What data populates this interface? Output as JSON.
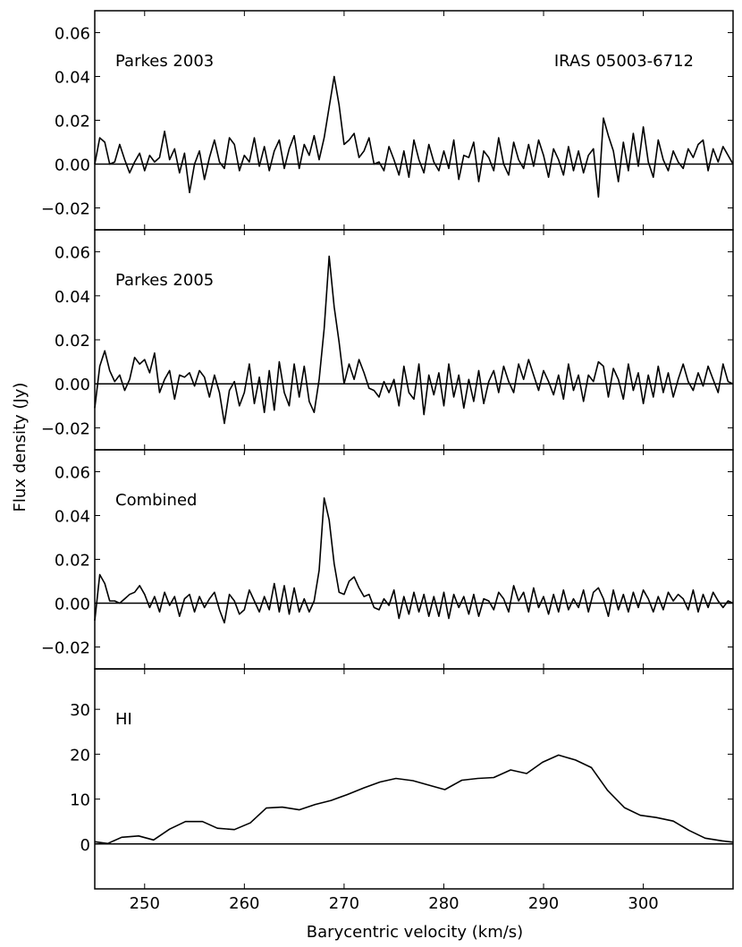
{
  "figure": {
    "ylabel": "Flux density (Jy)",
    "xlabel": "Barycentric velocity (km/s)"
  },
  "chart_data": [
    {
      "type": "line",
      "panel_label": "Parkes 2003",
      "annotation": "IRAS 05003-6712",
      "xlim": [
        245,
        309
      ],
      "ylim": [
        -0.03,
        0.07
      ],
      "yticks": [
        -0.02,
        0.0,
        0.02,
        0.04,
        0.06
      ],
      "ytick_labels": [
        "−0.02",
        "0.00",
        "0.02",
        "0.04",
        "0.06"
      ],
      "zero_line": true,
      "series": [
        {
          "x": [
            245.0,
            245.5,
            246.0,
            246.5,
            247.0,
            247.5,
            248.0,
            248.5,
            249.0,
            249.5,
            250.0,
            250.5,
            251.0,
            251.5,
            252.0,
            252.5,
            253.0,
            253.5,
            254.0,
            254.5,
            255.0,
            255.5,
            256.0,
            256.5,
            257.0,
            257.5,
            258.0,
            258.5,
            259.0,
            259.5,
            260.0,
            260.5,
            261.0,
            261.5,
            262.0,
            262.5,
            263.0,
            263.5,
            264.0,
            264.5,
            265.0,
            265.5,
            266.0,
            266.5,
            267.0,
            267.5,
            268.0,
            268.5,
            269.0,
            269.5,
            270.0,
            270.5,
            271.0,
            271.5,
            272.0,
            272.5,
            273.0,
            273.5,
            274.0,
            274.5,
            275.0,
            275.5,
            276.0,
            276.5,
            277.0,
            277.5,
            278.0,
            278.5,
            279.0,
            279.5,
            280.0,
            280.5,
            281.0,
            281.5,
            282.0,
            282.5,
            283.0,
            283.5,
            284.0,
            284.5,
            285.0,
            285.5,
            286.0,
            286.5,
            287.0,
            287.5,
            288.0,
            288.5,
            289.0,
            289.5,
            290.0,
            290.5,
            291.0,
            291.5,
            292.0,
            292.5,
            293.0,
            293.5,
            294.0,
            294.5,
            295.0,
            295.5,
            296.0,
            296.5,
            297.0,
            297.5,
            298.0,
            298.5,
            299.0,
            299.5,
            300.0,
            300.5,
            301.0,
            301.5,
            302.0,
            302.5,
            303.0,
            303.5,
            304.0,
            304.5,
            305.0,
            305.5,
            306.0,
            306.5,
            307.0,
            307.5,
            308.0,
            308.5,
            309.0
          ],
          "y": [
            0.0,
            0.012,
            0.01,
            0.0,
            0.001,
            0.009,
            0.002,
            -0.004,
            0.001,
            0.005,
            -0.003,
            0.004,
            0.001,
            0.003,
            0.015,
            0.002,
            0.007,
            -0.004,
            0.005,
            -0.013,
            0.0,
            0.006,
            -0.007,
            0.003,
            0.011,
            0.001,
            -0.002,
            0.012,
            0.009,
            -0.003,
            0.004,
            0.001,
            0.012,
            -0.001,
            0.008,
            -0.003,
            0.006,
            0.011,
            -0.002,
            0.007,
            0.013,
            -0.002,
            0.009,
            0.004,
            0.013,
            0.002,
            0.012,
            0.026,
            0.04,
            0.027,
            0.009,
            0.011,
            0.014,
            0.003,
            0.006,
            0.012,
            0.0,
            0.001,
            -0.003,
            0.008,
            0.002,
            -0.005,
            0.006,
            -0.006,
            0.011,
            0.002,
            -0.004,
            0.009,
            0.001,
            -0.003,
            0.006,
            -0.002,
            0.011,
            -0.007,
            0.004,
            0.003,
            0.01,
            -0.008,
            0.006,
            0.003,
            -0.003,
            0.012,
            0.0,
            -0.005,
            0.01,
            0.002,
            -0.002,
            0.009,
            -0.001,
            0.011,
            0.004,
            -0.006,
            0.007,
            0.002,
            -0.005,
            0.008,
            -0.003,
            0.006,
            -0.004,
            0.004,
            0.007,
            -0.015,
            0.021,
            0.013,
            0.006,
            -0.008,
            0.01,
            -0.003,
            0.014,
            -0.001,
            0.017,
            0.001,
            -0.006,
            0.011,
            0.002,
            -0.003,
            0.006,
            0.001,
            -0.002,
            0.007,
            0.003,
            0.009,
            0.011,
            -0.003,
            0.007,
            0.001,
            0.008,
            0.004,
            0.0
          ]
        }
      ]
    },
    {
      "type": "line",
      "panel_label": "Parkes 2005",
      "xlim": [
        245,
        309
      ],
      "ylim": [
        -0.03,
        0.07
      ],
      "yticks": [
        -0.02,
        0.0,
        0.02,
        0.04,
        0.06
      ],
      "ytick_labels": [
        "−0.02",
        "0.00",
        "0.02",
        "0.04",
        "0.06"
      ],
      "zero_line": true,
      "series": [
        {
          "x": [
            245.0,
            245.5,
            246.0,
            246.5,
            247.0,
            247.5,
            248.0,
            248.5,
            249.0,
            249.5,
            250.0,
            250.5,
            251.0,
            251.5,
            252.0,
            252.5,
            253.0,
            253.5,
            254.0,
            254.5,
            255.0,
            255.5,
            256.0,
            256.5,
            257.0,
            257.5,
            258.0,
            258.5,
            259.0,
            259.5,
            260.0,
            260.5,
            261.0,
            261.5,
            262.0,
            262.5,
            263.0,
            263.5,
            264.0,
            264.5,
            265.0,
            265.5,
            266.0,
            266.5,
            267.0,
            267.5,
            268.0,
            268.5,
            269.0,
            269.5,
            270.0,
            270.5,
            271.0,
            271.5,
            272.0,
            272.5,
            273.0,
            273.5,
            274.0,
            274.5,
            275.0,
            275.5,
            276.0,
            276.5,
            277.0,
            277.5,
            278.0,
            278.5,
            279.0,
            279.5,
            280.0,
            280.5,
            281.0,
            281.5,
            282.0,
            282.5,
            283.0,
            283.5,
            284.0,
            284.5,
            285.0,
            285.5,
            286.0,
            286.5,
            287.0,
            287.5,
            288.0,
            288.5,
            289.0,
            289.5,
            290.0,
            290.5,
            291.0,
            291.5,
            292.0,
            292.5,
            293.0,
            293.5,
            294.0,
            294.5,
            295.0,
            295.5,
            296.0,
            296.5,
            297.0,
            297.5,
            298.0,
            298.5,
            299.0,
            299.5,
            300.0,
            300.5,
            301.0,
            301.5,
            302.0,
            302.5,
            303.0,
            303.5,
            304.0,
            304.5,
            305.0,
            305.5,
            306.0,
            306.5,
            307.0,
            307.5,
            308.0,
            308.5,
            309.0
          ],
          "y": [
            -0.011,
            0.008,
            0.015,
            0.006,
            0.001,
            0.004,
            -0.003,
            0.002,
            0.012,
            0.009,
            0.011,
            0.005,
            0.014,
            -0.004,
            0.002,
            0.006,
            -0.007,
            0.004,
            0.003,
            0.005,
            -0.001,
            0.006,
            0.003,
            -0.006,
            0.004,
            -0.004,
            -0.018,
            -0.003,
            0.001,
            -0.01,
            -0.004,
            0.009,
            -0.009,
            0.003,
            -0.013,
            0.006,
            -0.012,
            0.01,
            -0.004,
            -0.01,
            0.009,
            -0.006,
            0.008,
            -0.008,
            -0.013,
            0.002,
            0.025,
            0.058,
            0.035,
            0.019,
            0.0,
            0.009,
            0.002,
            0.011,
            0.005,
            -0.002,
            -0.003,
            -0.006,
            0.001,
            -0.004,
            0.002,
            -0.01,
            0.008,
            -0.004,
            -0.007,
            0.009,
            -0.014,
            0.004,
            -0.005,
            0.005,
            -0.01,
            0.009,
            -0.006,
            0.004,
            -0.011,
            0.002,
            -0.008,
            0.006,
            -0.009,
            0.001,
            0.006,
            -0.004,
            0.008,
            0.001,
            -0.004,
            0.009,
            0.002,
            0.011,
            0.004,
            -0.003,
            0.006,
            0.001,
            -0.005,
            0.004,
            -0.007,
            0.009,
            -0.003,
            0.004,
            -0.008,
            0.004,
            0.001,
            0.01,
            0.008,
            -0.006,
            0.007,
            0.002,
            -0.007,
            0.009,
            -0.003,
            0.005,
            -0.009,
            0.004,
            -0.006,
            0.008,
            -0.004,
            0.005,
            -0.006,
            0.002,
            0.009,
            0.001,
            -0.003,
            0.005,
            -0.001,
            0.008,
            0.002,
            -0.004,
            0.009,
            0.001,
            0.0
          ]
        }
      ]
    },
    {
      "type": "line",
      "panel_label": "Combined",
      "xlim": [
        245,
        309
      ],
      "ylim": [
        -0.03,
        0.07
      ],
      "yticks": [
        -0.02,
        0.0,
        0.02,
        0.04,
        0.06
      ],
      "ytick_labels": [
        "−0.02",
        "0.00",
        "0.02",
        "0.04",
        "0.06"
      ],
      "zero_line": true,
      "series": [
        {
          "x": [
            245.0,
            245.5,
            246.0,
            246.5,
            247.0,
            247.5,
            248.0,
            248.5,
            249.0,
            249.5,
            250.0,
            250.5,
            251.0,
            251.5,
            252.0,
            252.5,
            253.0,
            253.5,
            254.0,
            254.5,
            255.0,
            255.5,
            256.0,
            256.5,
            257.0,
            257.5,
            258.0,
            258.5,
            259.0,
            259.5,
            260.0,
            260.5,
            261.0,
            261.5,
            262.0,
            262.5,
            263.0,
            263.5,
            264.0,
            264.5,
            265.0,
            265.5,
            266.0,
            266.5,
            267.0,
            267.5,
            268.0,
            268.5,
            269.0,
            269.5,
            270.0,
            270.5,
            271.0,
            271.5,
            272.0,
            272.5,
            273.0,
            273.5,
            274.0,
            274.5,
            275.0,
            275.5,
            276.0,
            276.5,
            277.0,
            277.5,
            278.0,
            278.5,
            279.0,
            279.5,
            280.0,
            280.5,
            281.0,
            281.5,
            282.0,
            282.5,
            283.0,
            283.5,
            284.0,
            284.5,
            285.0,
            285.5,
            286.0,
            286.5,
            287.0,
            287.5,
            288.0,
            288.5,
            289.0,
            289.5,
            290.0,
            290.5,
            291.0,
            291.5,
            292.0,
            292.5,
            293.0,
            293.5,
            294.0,
            294.5,
            295.0,
            295.5,
            296.0,
            296.5,
            297.0,
            297.5,
            298.0,
            298.5,
            299.0,
            299.5,
            300.0,
            300.5,
            301.0,
            301.5,
            302.0,
            302.5,
            303.0,
            303.5,
            304.0,
            304.5,
            305.0,
            305.5,
            306.0,
            306.5,
            307.0,
            307.5,
            308.0,
            308.5,
            309.0
          ],
          "y": [
            -0.008,
            0.013,
            0.009,
            0.001,
            0.001,
            0.0,
            0.002,
            0.004,
            0.005,
            0.008,
            0.004,
            -0.002,
            0.003,
            -0.004,
            0.005,
            -0.001,
            0.003,
            -0.006,
            0.002,
            0.004,
            -0.004,
            0.003,
            -0.002,
            0.002,
            0.005,
            -0.003,
            -0.009,
            0.004,
            0.001,
            -0.005,
            -0.003,
            0.006,
            0.001,
            -0.004,
            0.003,
            -0.003,
            0.009,
            -0.004,
            0.008,
            -0.005,
            0.007,
            -0.004,
            0.002,
            -0.004,
            0.001,
            0.015,
            0.048,
            0.038,
            0.018,
            0.005,
            0.004,
            0.01,
            0.012,
            0.007,
            0.003,
            0.004,
            -0.002,
            -0.003,
            0.002,
            -0.001,
            0.006,
            -0.007,
            0.003,
            -0.005,
            0.005,
            -0.004,
            0.004,
            -0.006,
            0.003,
            -0.006,
            0.005,
            -0.007,
            0.004,
            -0.002,
            0.003,
            -0.005,
            0.004,
            -0.006,
            0.002,
            0.001,
            -0.003,
            0.005,
            0.002,
            -0.004,
            0.008,
            0.001,
            0.005,
            -0.004,
            0.007,
            -0.002,
            0.003,
            -0.005,
            0.004,
            -0.004,
            0.006,
            -0.003,
            0.002,
            -0.002,
            0.006,
            -0.004,
            0.005,
            0.007,
            0.002,
            -0.006,
            0.006,
            -0.003,
            0.004,
            -0.004,
            0.005,
            -0.002,
            0.006,
            0.002,
            -0.004,
            0.003,
            -0.003,
            0.005,
            0.001,
            0.004,
            0.002,
            -0.003,
            0.006,
            -0.004,
            0.004,
            -0.002,
            0.005,
            0.001,
            -0.002,
            0.001,
            0.0
          ]
        }
      ]
    },
    {
      "type": "line",
      "panel_label": "HI",
      "xlim": [
        245,
        309
      ],
      "ylim": [
        -10,
        39
      ],
      "yticks": [
        0,
        10,
        20,
        30
      ],
      "ytick_labels": [
        "0",
        "10",
        "20",
        "30"
      ],
      "xticks": [
        250,
        260,
        270,
        280,
        290,
        300
      ],
      "xtick_labels": [
        "250",
        "260",
        "270",
        "280",
        "290",
        "300"
      ],
      "zero_line": true,
      "series": [
        {
          "x": [
            245.0,
            246.3,
            247.7,
            249.4,
            250.9,
            252.5,
            254.1,
            255.8,
            257.3,
            259.0,
            260.6,
            262.2,
            263.8,
            265.5,
            267.1,
            268.7,
            270.3,
            272.0,
            273.6,
            275.2,
            276.9,
            278.5,
            280.1,
            281.8,
            283.4,
            285.0,
            286.7,
            288.3,
            289.9,
            291.5,
            293.2,
            294.8,
            296.4,
            298.1,
            299.7,
            301.3,
            303.0,
            304.6,
            306.2,
            307.9,
            309.0
          ],
          "y": [
            0.5,
            0.1,
            1.5,
            1.8,
            0.9,
            3.3,
            5.0,
            5.0,
            3.5,
            3.2,
            4.7,
            8.0,
            8.2,
            7.6,
            8.8,
            9.7,
            11.0,
            12.5,
            13.8,
            14.6,
            14.1,
            13.1,
            12.1,
            14.2,
            14.6,
            14.8,
            16.5,
            15.7,
            18.2,
            19.8,
            18.7,
            17.0,
            12.0,
            8.1,
            6.4,
            5.9,
            5.1,
            3.0,
            1.3,
            0.7,
            0.4
          ]
        }
      ]
    }
  ]
}
